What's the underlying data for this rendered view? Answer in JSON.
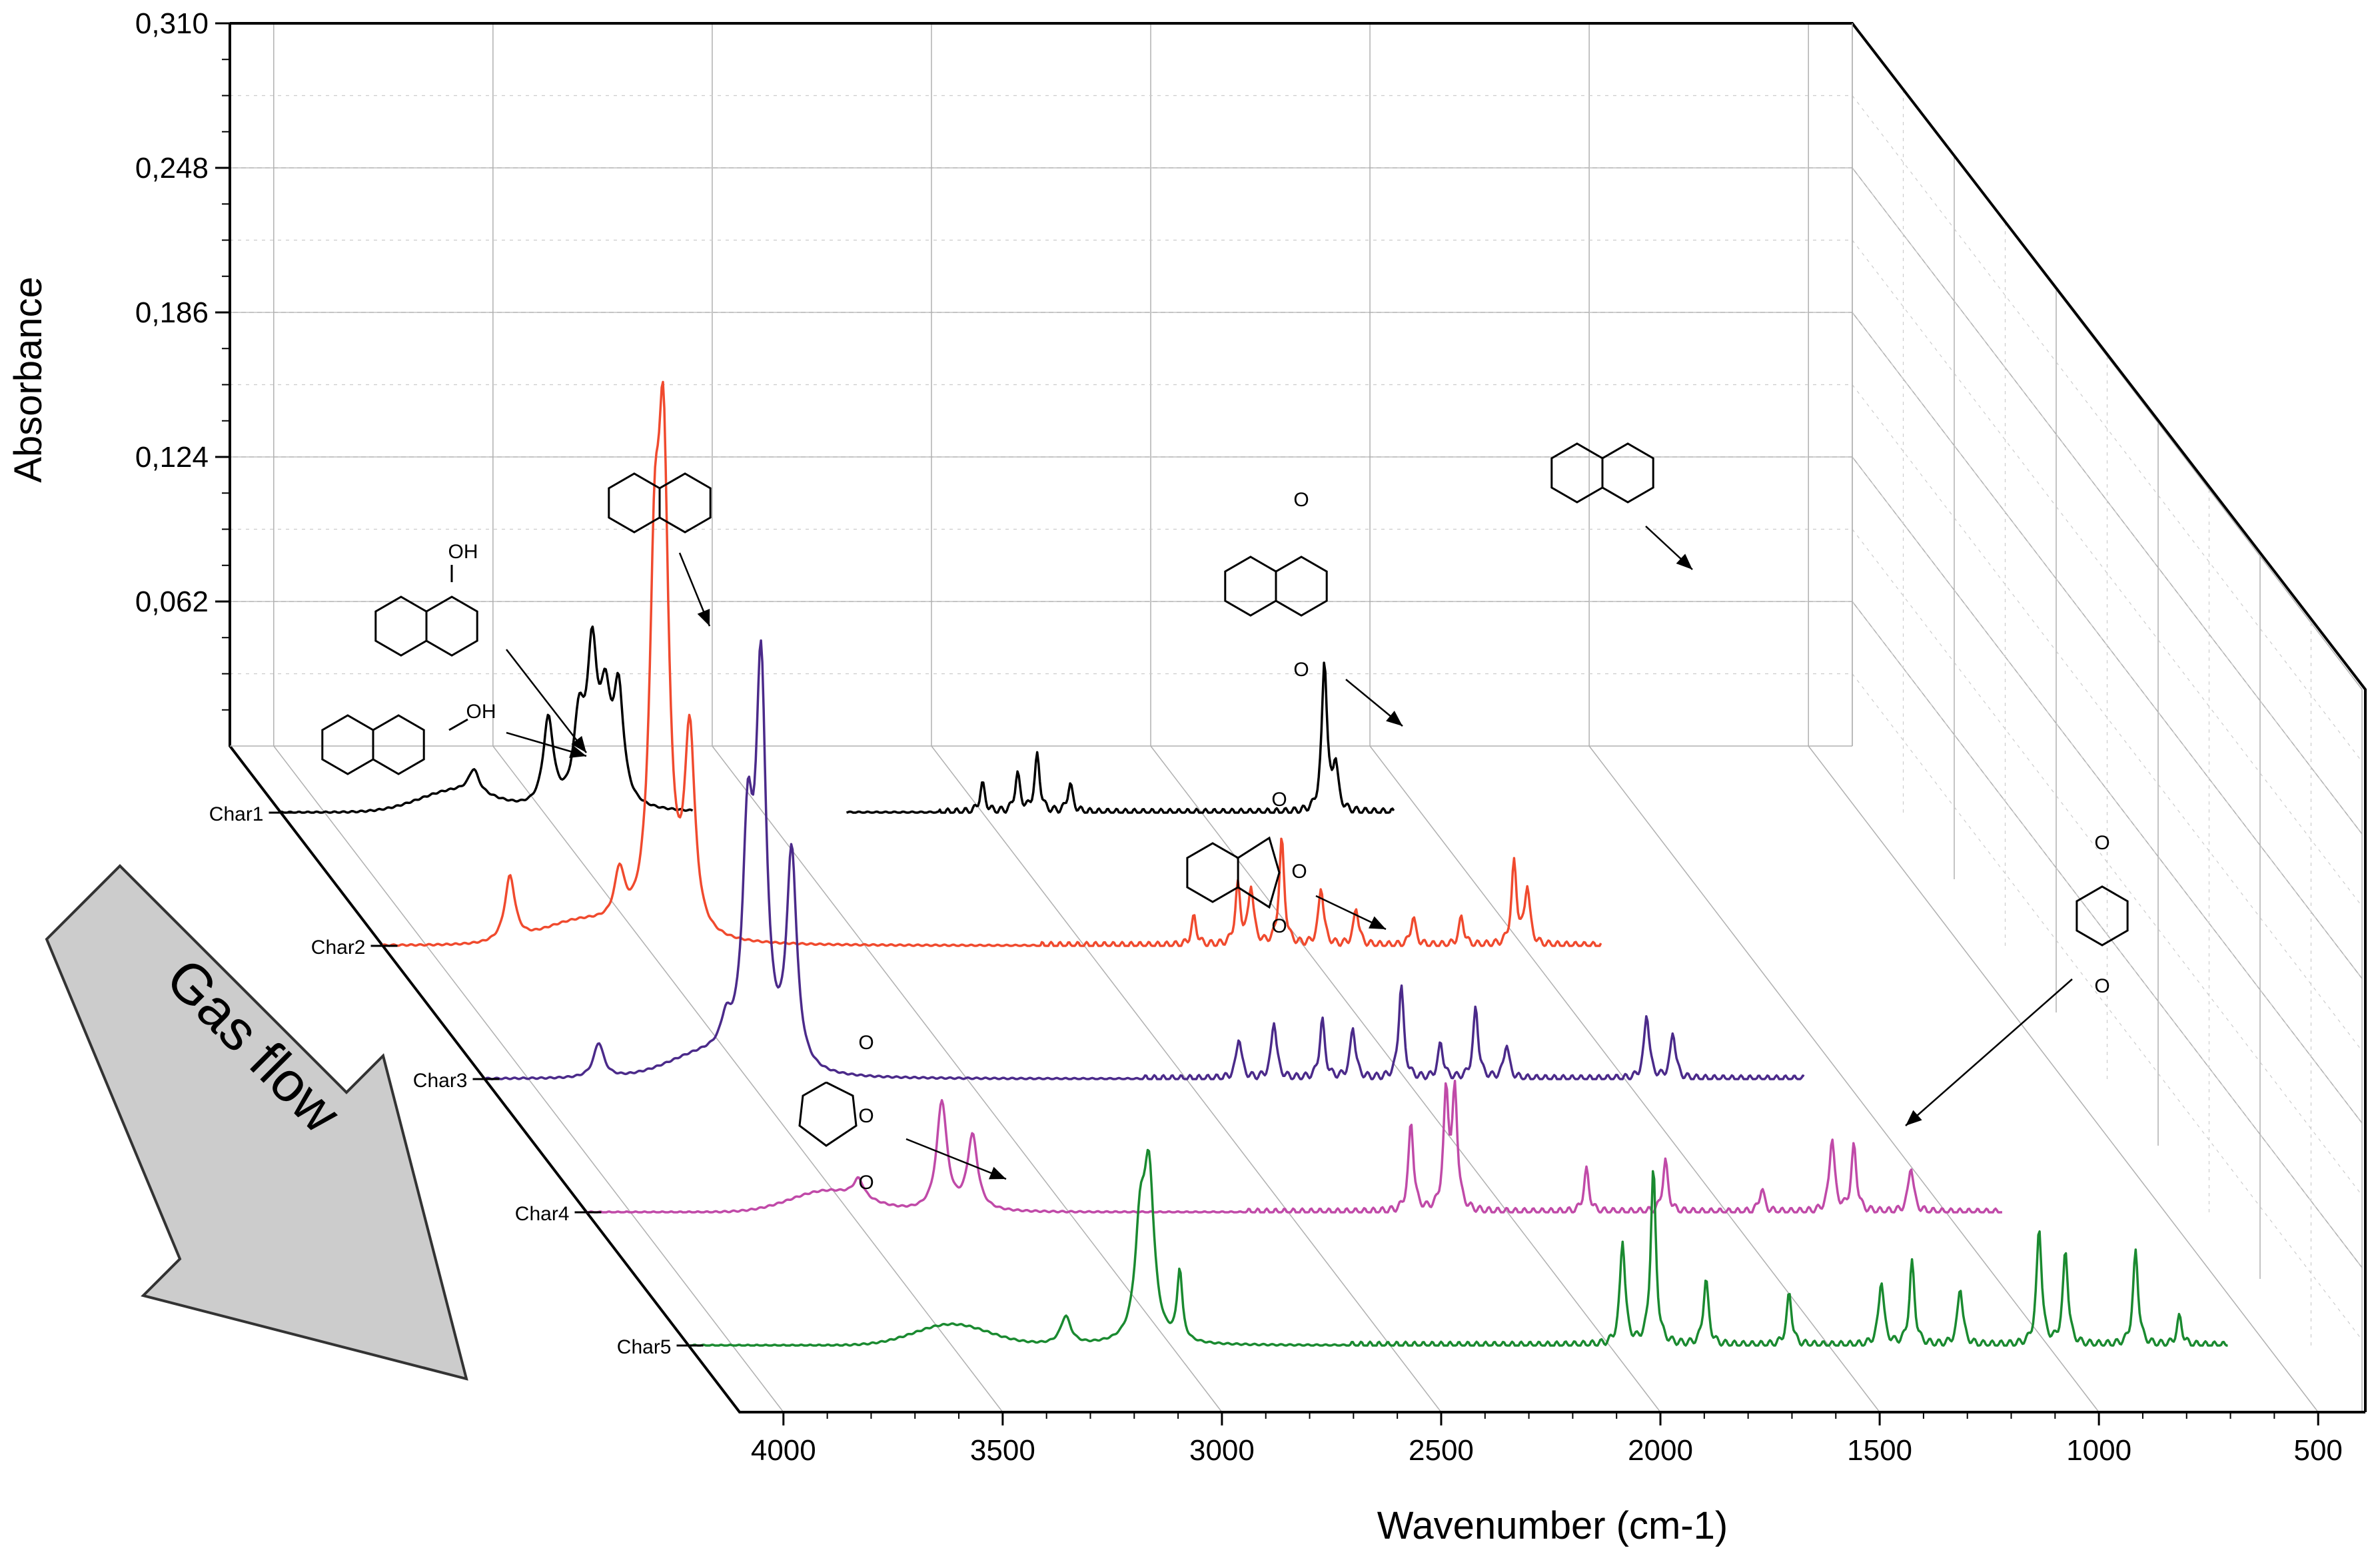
{
  "chart_data": {
    "type": "line",
    "style": "3d-waterfall",
    "xlabel": "Wavenumber (cm-1)",
    "ylabel": "Absorbance",
    "xlim": [
      4100,
      400
    ],
    "ylim": [
      0,
      0.31
    ],
    "x_ticks": [
      4000,
      3500,
      3000,
      2500,
      2000,
      1500,
      1000,
      500
    ],
    "x_tick_labels": [
      "4000",
      "3500",
      "3000",
      "2500",
      "2000",
      "1500",
      "1000",
      "500"
    ],
    "y_ticks": [
      0.062,
      0.124,
      0.186,
      0.248,
      0.31
    ],
    "y_tick_labels": [
      "0,062",
      "0,124",
      "0,186",
      "0,248",
      "0,310"
    ],
    "grid": true,
    "colors": {
      "Char1": "#000000",
      "Char2": "#f04a2e",
      "Char3": "#4b2a8a",
      "Char4": "#c04aa8",
      "Char5": "#1a8a30"
    },
    "series": [
      {
        "name": "Char1",
        "peaks": [
          {
            "x": 3660,
            "y": 0.01
          },
          {
            "x": 3490,
            "y": 0.038
          },
          {
            "x": 3420,
            "y": 0.035
          },
          {
            "x": 3390,
            "y": 0.063
          },
          {
            "x": 3360,
            "y": 0.04
          },
          {
            "x": 3330,
            "y": 0.048
          },
          {
            "x": 2500,
            "y": 0.012
          },
          {
            "x": 2420,
            "y": 0.016
          },
          {
            "x": 2375,
            "y": 0.024
          },
          {
            "x": 2300,
            "y": 0.012
          },
          {
            "x": 1720,
            "y": 0.065
          },
          {
            "x": 1695,
            "y": 0.02
          },
          {
            "x": 1390,
            "y": 0.03
          }
        ]
      },
      {
        "name": "Char2",
        "peaks": [
          {
            "x": 3810,
            "y": 0.028
          },
          {
            "x": 3560,
            "y": 0.022
          },
          {
            "x": 3480,
            "y": 0.135
          },
          {
            "x": 3460,
            "y": 0.19
          },
          {
            "x": 3400,
            "y": 0.085
          },
          {
            "x": 2250,
            "y": 0.012
          },
          {
            "x": 2150,
            "y": 0.025
          },
          {
            "x": 2120,
            "y": 0.025
          },
          {
            "x": 2050,
            "y": 0.045
          },
          {
            "x": 1960,
            "y": 0.025
          },
          {
            "x": 1880,
            "y": 0.016
          },
          {
            "x": 1750,
            "y": 0.012
          },
          {
            "x": 1640,
            "y": 0.012
          },
          {
            "x": 1520,
            "y": 0.035
          },
          {
            "x": 1490,
            "y": 0.025
          },
          {
            "x": 1000,
            "y": 0.025
          }
        ]
      },
      {
        "name": "Char3",
        "peaks": [
          {
            "x": 3840,
            "y": 0.015
          },
          {
            "x": 3550,
            "y": 0.012
          },
          {
            "x": 3500,
            "y": 0.092
          },
          {
            "x": 3470,
            "y": 0.165
          },
          {
            "x": 3400,
            "y": 0.092
          },
          {
            "x": 2380,
            "y": 0.018
          },
          {
            "x": 2300,
            "y": 0.025
          },
          {
            "x": 2190,
            "y": 0.025
          },
          {
            "x": 2120,
            "y": 0.022
          },
          {
            "x": 2010,
            "y": 0.04
          },
          {
            "x": 1920,
            "y": 0.015
          },
          {
            "x": 1840,
            "y": 0.03
          },
          {
            "x": 1770,
            "y": 0.015
          },
          {
            "x": 1450,
            "y": 0.028
          },
          {
            "x": 1390,
            "y": 0.02
          }
        ]
      },
      {
        "name": "Char4",
        "peaks": [
          {
            "x": 3480,
            "y": 0.008
          },
          {
            "x": 3290,
            "y": 0.047
          },
          {
            "x": 3220,
            "y": 0.032
          },
          {
            "x": 2220,
            "y": 0.038
          },
          {
            "x": 2140,
            "y": 0.05
          },
          {
            "x": 2120,
            "y": 0.05
          },
          {
            "x": 1820,
            "y": 0.018
          },
          {
            "x": 1640,
            "y": 0.022
          },
          {
            "x": 1420,
            "y": 0.01
          },
          {
            "x": 1260,
            "y": 0.032
          },
          {
            "x": 1210,
            "y": 0.028
          },
          {
            "x": 1080,
            "y": 0.02
          }
        ]
      },
      {
        "name": "Char5",
        "peaks": [
          {
            "x": 3240,
            "y": 0.012
          },
          {
            "x": 3070,
            "y": 0.045
          },
          {
            "x": 3050,
            "y": 0.068
          },
          {
            "x": 2980,
            "y": 0.03
          },
          {
            "x": 1970,
            "y": 0.045
          },
          {
            "x": 1900,
            "y": 0.075
          },
          {
            "x": 1780,
            "y": 0.028
          },
          {
            "x": 1590,
            "y": 0.022
          },
          {
            "x": 1380,
            "y": 0.028
          },
          {
            "x": 1310,
            "y": 0.035
          },
          {
            "x": 1200,
            "y": 0.025
          },
          {
            "x": 1020,
            "y": 0.05
          },
          {
            "x": 960,
            "y": 0.04
          },
          {
            "x": 800,
            "y": 0.04
          },
          {
            "x": 700,
            "y": 0.012
          }
        ]
      }
    ],
    "annotations": [
      {
        "label": "OH",
        "target_series": "Char1",
        "x": 3740
      },
      {
        "label": "OH",
        "target_series": "Char1",
        "x": 3740
      },
      {
        "label": "",
        "target_series": "Char1",
        "x": 3570
      },
      {
        "label": "",
        "target_series": "Char1",
        "x": 1720
      },
      {
        "label": "O",
        "target_series": "Char1",
        "x": 2500
      },
      {
        "label": "O",
        "target_series": "Char2",
        "x": 2300
      },
      {
        "label": "O",
        "target_series": "Char4",
        "x": 3490
      },
      {
        "label": "O",
        "target_series": "Char4",
        "x": 1420
      }
    ],
    "arrow_label": "Gas flow"
  },
  "molecule_labels": {
    "oh": "OH",
    "o": "O"
  }
}
